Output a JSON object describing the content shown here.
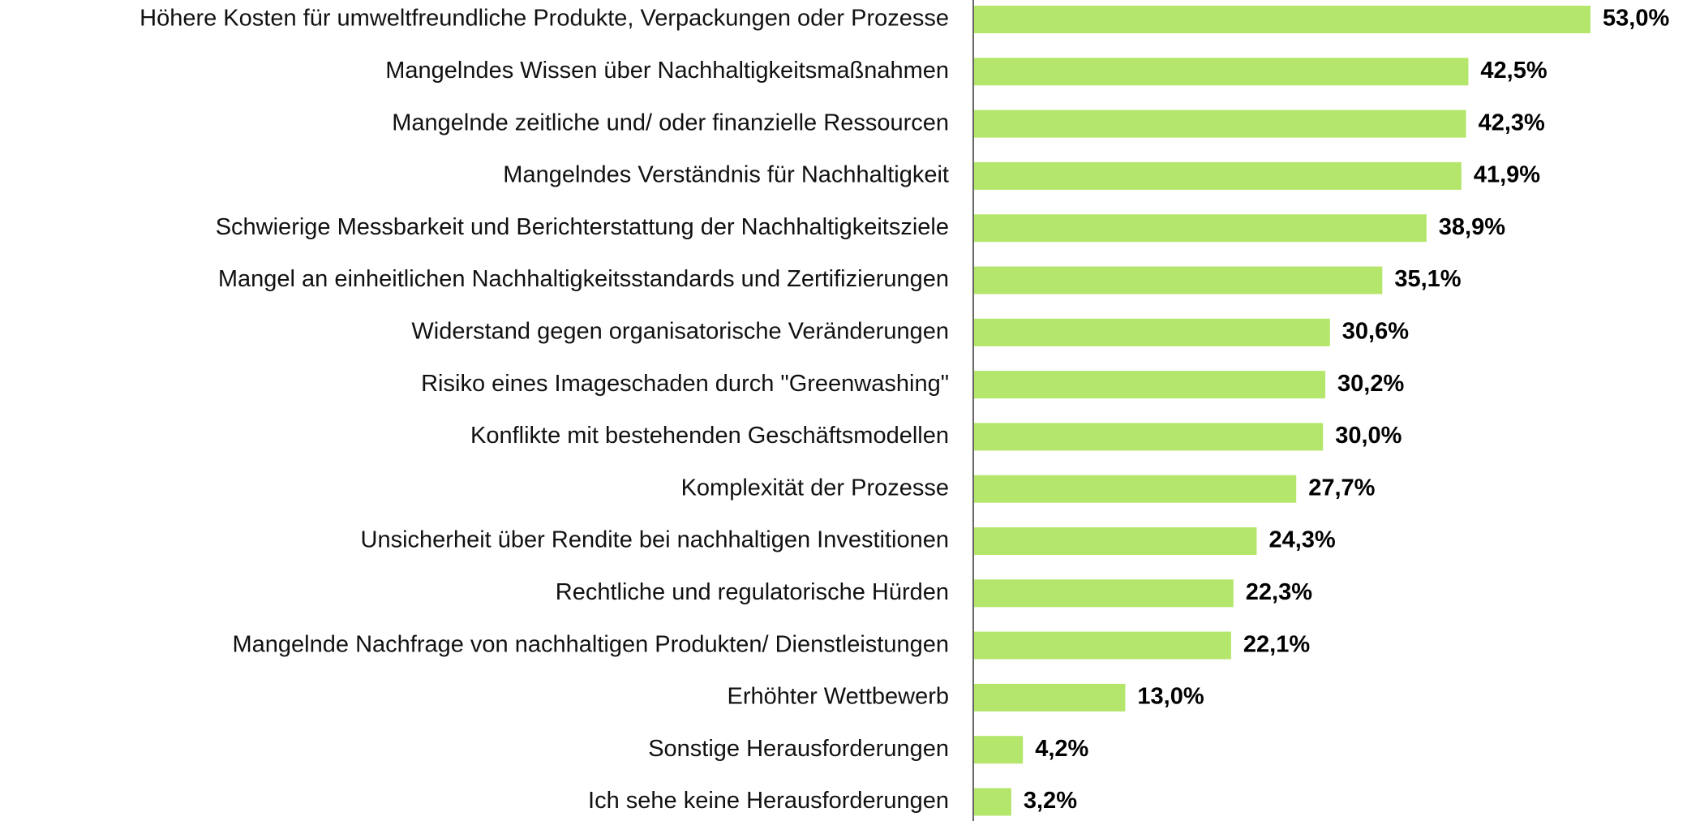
{
  "chart_data": {
    "type": "hbar",
    "color": "#b3e66a",
    "categories": [
      "Höhere Kosten für umweltfreundliche Produkte, Verpackungen oder Prozesse",
      "Mangelndes Wissen über Nachhaltigkeitsmaßnahmen",
      "Mangelnde zeitliche und/ oder finanzielle Ressourcen",
      "Mangelndes Verständnis für Nachhaltigkeit",
      "Schwierige Messbarkeit und Berichterstattung der Nachhaltigkeitsziele",
      "Mangel an einheitlichen Nachhaltigkeitsstandards und Zertifizierungen",
      "Widerstand gegen organisatorische Veränderungen",
      "Risiko eines Imageschaden durch \"Greenwashing\"",
      "Konflikte mit bestehenden Geschäftsmodellen",
      "Komplexität der Prozesse",
      "Unsicherheit über Rendite bei nachhaltigen Investitionen",
      "Rechtliche und regulatorische Hürden",
      "Mangelnde Nachfrage von nachhaltigen Produkten/ Dienstleistungen",
      "Erhöhter Wettbewerb",
      "Sonstige Herausforderungen",
      "Ich sehe keine Herausforderungen"
    ],
    "values": [
      53.0,
      42.5,
      42.3,
      41.9,
      38.9,
      35.1,
      30.6,
      30.2,
      30.0,
      27.7,
      24.3,
      22.3,
      22.1,
      13.0,
      4.2,
      3.2
    ],
    "value_labels": [
      "53,0%",
      "42,5%",
      "42,3%",
      "41,9%",
      "38,9%",
      "35,1%",
      "30,6%",
      "30,2%",
      "30,0%",
      "27,7%",
      "24,3%",
      "22,3%",
      "22,1%",
      "13,0%",
      "4,2%",
      "3,2%"
    ]
  }
}
